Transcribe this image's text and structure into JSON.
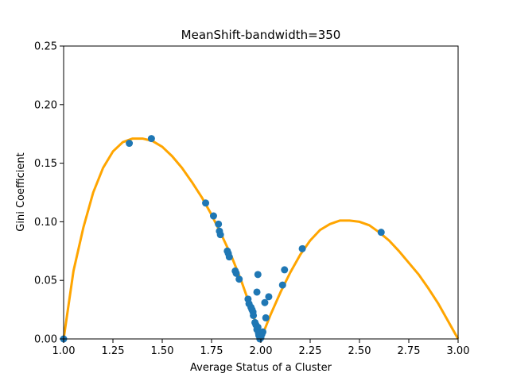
{
  "chart_data": {
    "type": "scatter",
    "title": "MeanShift-bandwidth=350",
    "xlabel": "Average Status of a Cluster",
    "ylabel": "Gini Coefficient",
    "xlim": [
      1.0,
      3.0
    ],
    "ylim": [
      0.0,
      0.25
    ],
    "xticks": [
      "1.00",
      "1.25",
      "1.50",
      "1.75",
      "2.00",
      "2.25",
      "2.50",
      "2.75",
      "3.00"
    ],
    "yticks": [
      "0.00",
      "0.05",
      "0.10",
      "0.15",
      "0.20",
      "0.25"
    ],
    "grid": false,
    "colors": {
      "curve": "#ffa500",
      "points": "#1f77b4"
    },
    "curve": {
      "x": [
        1.0,
        1.05,
        1.1,
        1.15,
        1.2,
        1.25,
        1.3,
        1.35,
        1.4,
        1.45,
        1.5,
        1.55,
        1.6,
        1.65,
        1.7,
        1.75,
        1.8,
        1.85,
        1.9,
        1.95,
        2.0,
        2.05,
        2.1,
        2.15,
        2.2,
        2.25,
        2.3,
        2.35,
        2.4,
        2.45,
        2.5,
        2.55,
        2.6,
        2.65,
        2.7,
        2.75,
        2.8,
        2.85,
        2.9,
        2.95,
        3.0
      ],
      "y": [
        0.0,
        0.058,
        0.095,
        0.125,
        0.146,
        0.16,
        0.168,
        0.171,
        0.171,
        0.169,
        0.164,
        0.156,
        0.146,
        0.134,
        0.121,
        0.106,
        0.089,
        0.071,
        0.05,
        0.026,
        0.0,
        0.021,
        0.04,
        0.057,
        0.072,
        0.084,
        0.093,
        0.098,
        0.101,
        0.101,
        0.1,
        0.097,
        0.091,
        0.084,
        0.075,
        0.065,
        0.055,
        0.043,
        0.03,
        0.015,
        0.0
      ]
    },
    "points": [
      [
        1.0,
        0.0
      ],
      [
        1.333,
        0.167
      ],
      [
        1.445,
        0.171
      ],
      [
        1.72,
        0.116
      ],
      [
        1.76,
        0.105
      ],
      [
        1.785,
        0.098
      ],
      [
        1.79,
        0.092
      ],
      [
        1.795,
        0.089
      ],
      [
        1.83,
        0.075
      ],
      [
        1.835,
        0.073
      ],
      [
        1.84,
        0.07
      ],
      [
        1.87,
        0.058
      ],
      [
        1.875,
        0.056
      ],
      [
        1.89,
        0.051
      ],
      [
        1.935,
        0.034
      ],
      [
        1.94,
        0.03
      ],
      [
        1.95,
        0.027
      ],
      [
        1.955,
        0.025
      ],
      [
        1.96,
        0.023
      ],
      [
        1.962,
        0.02
      ],
      [
        1.97,
        0.014
      ],
      [
        1.975,
        0.012
      ],
      [
        1.98,
        0.008
      ],
      [
        1.985,
        0.01
      ],
      [
        1.988,
        0.005
      ],
      [
        1.99,
        0.003
      ],
      [
        1.995,
        0.0
      ],
      [
        2.0,
        0.001
      ],
      [
        2.005,
        0.004
      ],
      [
        2.01,
        0.006
      ],
      [
        1.98,
        0.04
      ],
      [
        1.985,
        0.055
      ],
      [
        2.02,
        0.031
      ],
      [
        2.025,
        0.018
      ],
      [
        2.04,
        0.036
      ],
      [
        2.11,
        0.046
      ],
      [
        2.12,
        0.059
      ],
      [
        2.21,
        0.077
      ],
      [
        2.61,
        0.091
      ]
    ]
  }
}
